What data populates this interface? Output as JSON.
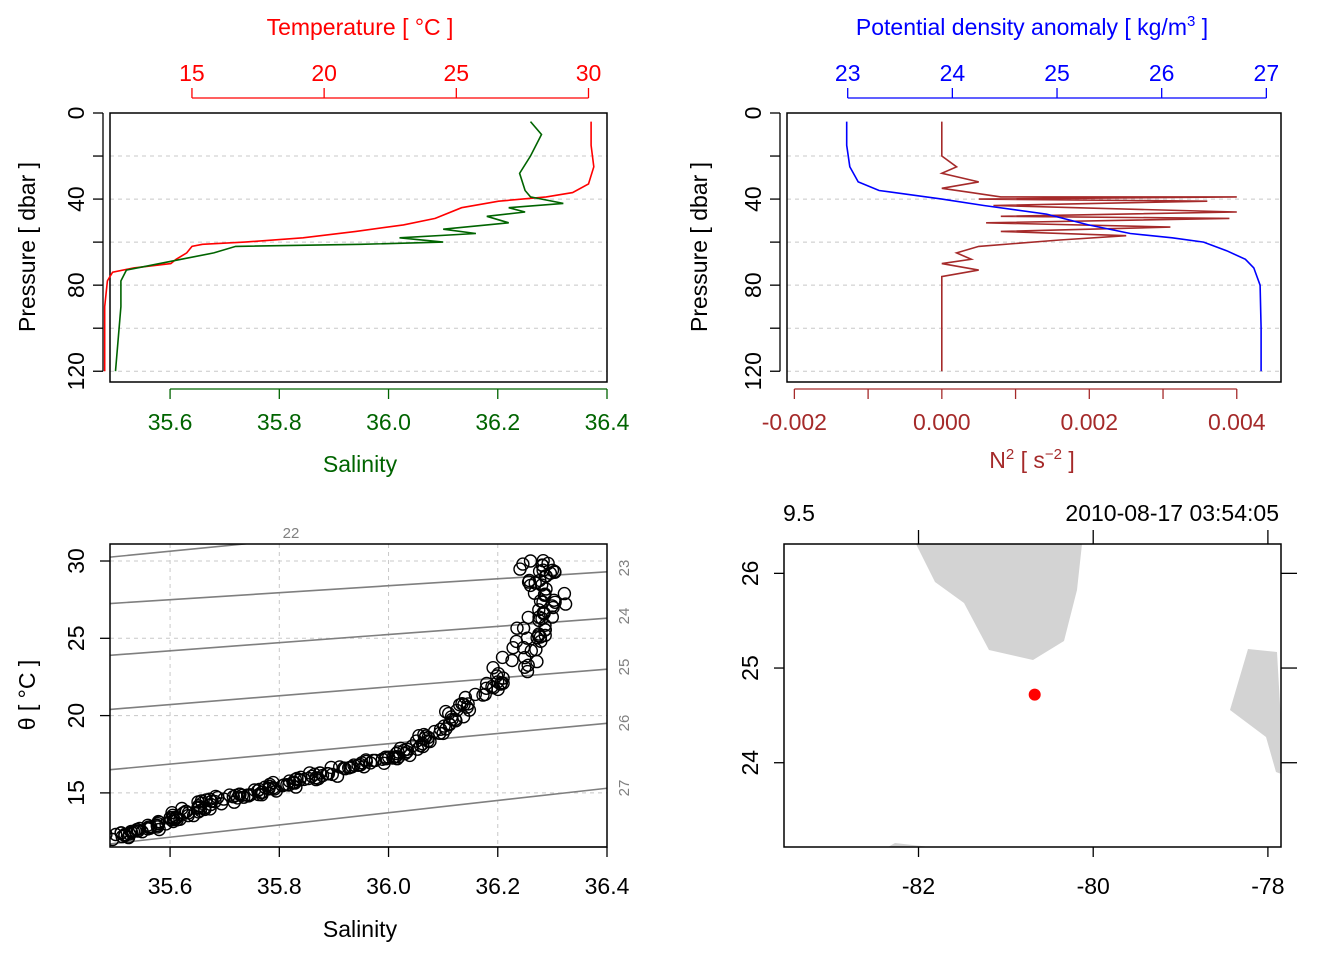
{
  "chart_data": [
    {
      "type": "line",
      "panel": "temperature-salinity-profile",
      "title": "Temperature [ °C ]",
      "xlabel": "Salinity",
      "ylabel": "Pressure [ dbar ]",
      "xlim": [
        35.49,
        36.4
      ],
      "ylim": [
        0,
        125
      ],
      "top_xlim": [
        11.9,
        30.7
      ],
      "x_ticks": [
        "35.6",
        "35.8",
        "36.0",
        "36.2",
        "36.4"
      ],
      "top_ticks": [
        "15",
        "20",
        "25",
        "30"
      ],
      "y_ticks": [
        "0",
        "40",
        "80",
        "120"
      ],
      "grid": true,
      "colors": {
        "temperature": "#ff0000",
        "salinity": "#006400"
      },
      "series": [
        {
          "name": "Temperature",
          "axis": "top",
          "points": [
            [
              30.1,
              4
            ],
            [
              30.1,
              15
            ],
            [
              30.2,
              25
            ],
            [
              30.0,
              33
            ],
            [
              29.4,
              37
            ],
            [
              28.4,
              39
            ],
            [
              26.6,
              41
            ],
            [
              25.2,
              44
            ],
            [
              24.2,
              49
            ],
            [
              23.0,
              52
            ],
            [
              21.2,
              55
            ],
            [
              19.2,
              58
            ],
            [
              17.0,
              60
            ],
            [
              15.4,
              61
            ],
            [
              15.0,
              62
            ],
            [
              14.8,
              65
            ],
            [
              14.4,
              68
            ],
            [
              14.2,
              70
            ],
            [
              12.8,
              72
            ],
            [
              12.0,
              74
            ],
            [
              11.8,
              78
            ],
            [
              11.7,
              90
            ],
            [
              11.7,
              120
            ]
          ]
        },
        {
          "name": "Salinity",
          "axis": "bottom",
          "points": [
            [
              36.26,
              4
            ],
            [
              36.28,
              10
            ],
            [
              36.26,
              20
            ],
            [
              36.24,
              28
            ],
            [
              36.25,
              36
            ],
            [
              36.26,
              39
            ],
            [
              36.32,
              42
            ],
            [
              36.22,
              44
            ],
            [
              36.25,
              46
            ],
            [
              36.18,
              48
            ],
            [
              36.22,
              51
            ],
            [
              36.1,
              54
            ],
            [
              36.16,
              56
            ],
            [
              36.02,
              58
            ],
            [
              36.1,
              60
            ],
            [
              35.95,
              61
            ],
            [
              35.72,
              62
            ],
            [
              35.68,
              65
            ],
            [
              35.62,
              68
            ],
            [
              35.56,
              71
            ],
            [
              35.52,
              73
            ],
            [
              35.51,
              78
            ],
            [
              35.51,
              90
            ],
            [
              35.5,
              120
            ]
          ]
        }
      ]
    },
    {
      "type": "line",
      "panel": "density-n2-profile",
      "title": "Potential density anomaly [ kg/m",
      "title_superscript": "3",
      "title_suffix": " ]",
      "xlabel": "N",
      "xlabel_superscript": "2",
      "xlabel_unit": " [ s",
      "xlabel_unit_superscript": "−2",
      "xlabel_suffix": " ]",
      "ylabel": "Pressure [ dbar ]",
      "xlim": [
        -0.0021,
        0.0046
      ],
      "ylim": [
        0,
        125
      ],
      "top_xlim": [
        22.42,
        27.14
      ],
      "x_ticks": [
        "-0.002",
        "0.000",
        "0.002",
        "0.004"
      ],
      "top_ticks": [
        "23",
        "24",
        "25",
        "26",
        "27"
      ],
      "y_ticks": [
        "0",
        "40",
        "80",
        "120"
      ],
      "grid": true,
      "colors": {
        "density": "#0000ff",
        "n2": "#a52a2a"
      },
      "series": [
        {
          "name": "Potential density anomaly",
          "axis": "top",
          "points": [
            [
              22.99,
              4
            ],
            [
              22.99,
              15
            ],
            [
              23.02,
              25
            ],
            [
              23.1,
              32
            ],
            [
              23.3,
              36
            ],
            [
              23.9,
              40
            ],
            [
              24.3,
              43
            ],
            [
              24.9,
              47
            ],
            [
              25.3,
              52
            ],
            [
              25.7,
              56
            ],
            [
              26.1,
              58
            ],
            [
              26.4,
              60
            ],
            [
              26.62,
              64
            ],
            [
              26.8,
              68
            ],
            [
              26.88,
              72
            ],
            [
              26.94,
              80
            ],
            [
              26.95,
              100
            ],
            [
              26.95,
              120
            ]
          ]
        },
        {
          "name": "N2",
          "axis": "bottom",
          "points": [
            [
              0.0,
              4
            ],
            [
              0.0,
              20
            ],
            [
              0.0002,
              25
            ],
            [
              0.0,
              28
            ],
            [
              0.0005,
              32
            ],
            [
              0.0,
              35
            ],
            [
              0.0004,
              37
            ],
            [
              0.0008,
              39
            ],
            [
              0.004,
              39
            ],
            [
              0.0005,
              40
            ],
            [
              0.0036,
              41
            ],
            [
              0.0007,
              43
            ],
            [
              0.004,
              46
            ],
            [
              0.0008,
              48
            ],
            [
              0.0039,
              49
            ],
            [
              0.0006,
              51
            ],
            [
              0.0031,
              53
            ],
            [
              0.0008,
              55
            ],
            [
              0.0025,
              57
            ],
            [
              0.0016,
              59
            ],
            [
              0.0005,
              62
            ],
            [
              0.0002,
              65
            ],
            [
              0.0004,
              68
            ],
            [
              0.0,
              70
            ],
            [
              0.0005,
              73
            ],
            [
              0.0,
              76
            ],
            [
              0.0,
              120
            ]
          ]
        }
      ]
    },
    {
      "type": "scatter",
      "panel": "ts-diagram",
      "xlabel": "Salinity",
      "ylabel": "θ [ °C ]",
      "xlim": [
        35.49,
        36.4
      ],
      "ylim": [
        11.5,
        31.1
      ],
      "x_ticks": [
        "35.6",
        "35.8",
        "36.0",
        "36.2",
        "36.4"
      ],
      "y_ticks": [
        "15",
        "20",
        "25",
        "30"
      ],
      "grid": true,
      "points": [
        [
          35.5,
          12.1
        ],
        [
          35.53,
          12.5
        ],
        [
          35.58,
          13.0
        ],
        [
          35.62,
          13.6
        ],
        [
          35.66,
          14.1
        ],
        [
          35.7,
          14.6
        ],
        [
          35.75,
          15.0
        ],
        [
          35.8,
          15.5
        ],
        [
          35.85,
          15.9
        ],
        [
          35.9,
          16.4
        ],
        [
          35.96,
          16.9
        ],
        [
          36.02,
          17.5
        ],
        [
          36.06,
          18.3
        ],
        [
          36.1,
          19.5
        ],
        [
          36.15,
          21.0
        ],
        [
          36.22,
          22.5
        ],
        [
          36.25,
          24.5
        ],
        [
          36.27,
          26.0
        ],
        [
          36.3,
          27.5
        ],
        [
          36.28,
          29.0
        ],
        [
          36.26,
          30.0
        ]
      ],
      "isopycnals": [
        "22",
        "23",
        "24",
        "25",
        "26",
        "27"
      ]
    },
    {
      "type": "map",
      "panel": "station-map",
      "label_left": "9.5",
      "label_right": "2010-08-17 03:54:05",
      "xlim": [
        -83.54,
        -77.85
      ],
      "ylim": [
        23.11,
        26.31
      ],
      "x_ticks": [
        "-82",
        "-80",
        "-78"
      ],
      "y_ticks": [
        "24",
        "25",
        "26"
      ],
      "station": {
        "lon": -80.67,
        "lat": 24.72
      },
      "colors": {
        "land": "#d3d3d3",
        "station": "#ff0000"
      }
    }
  ]
}
